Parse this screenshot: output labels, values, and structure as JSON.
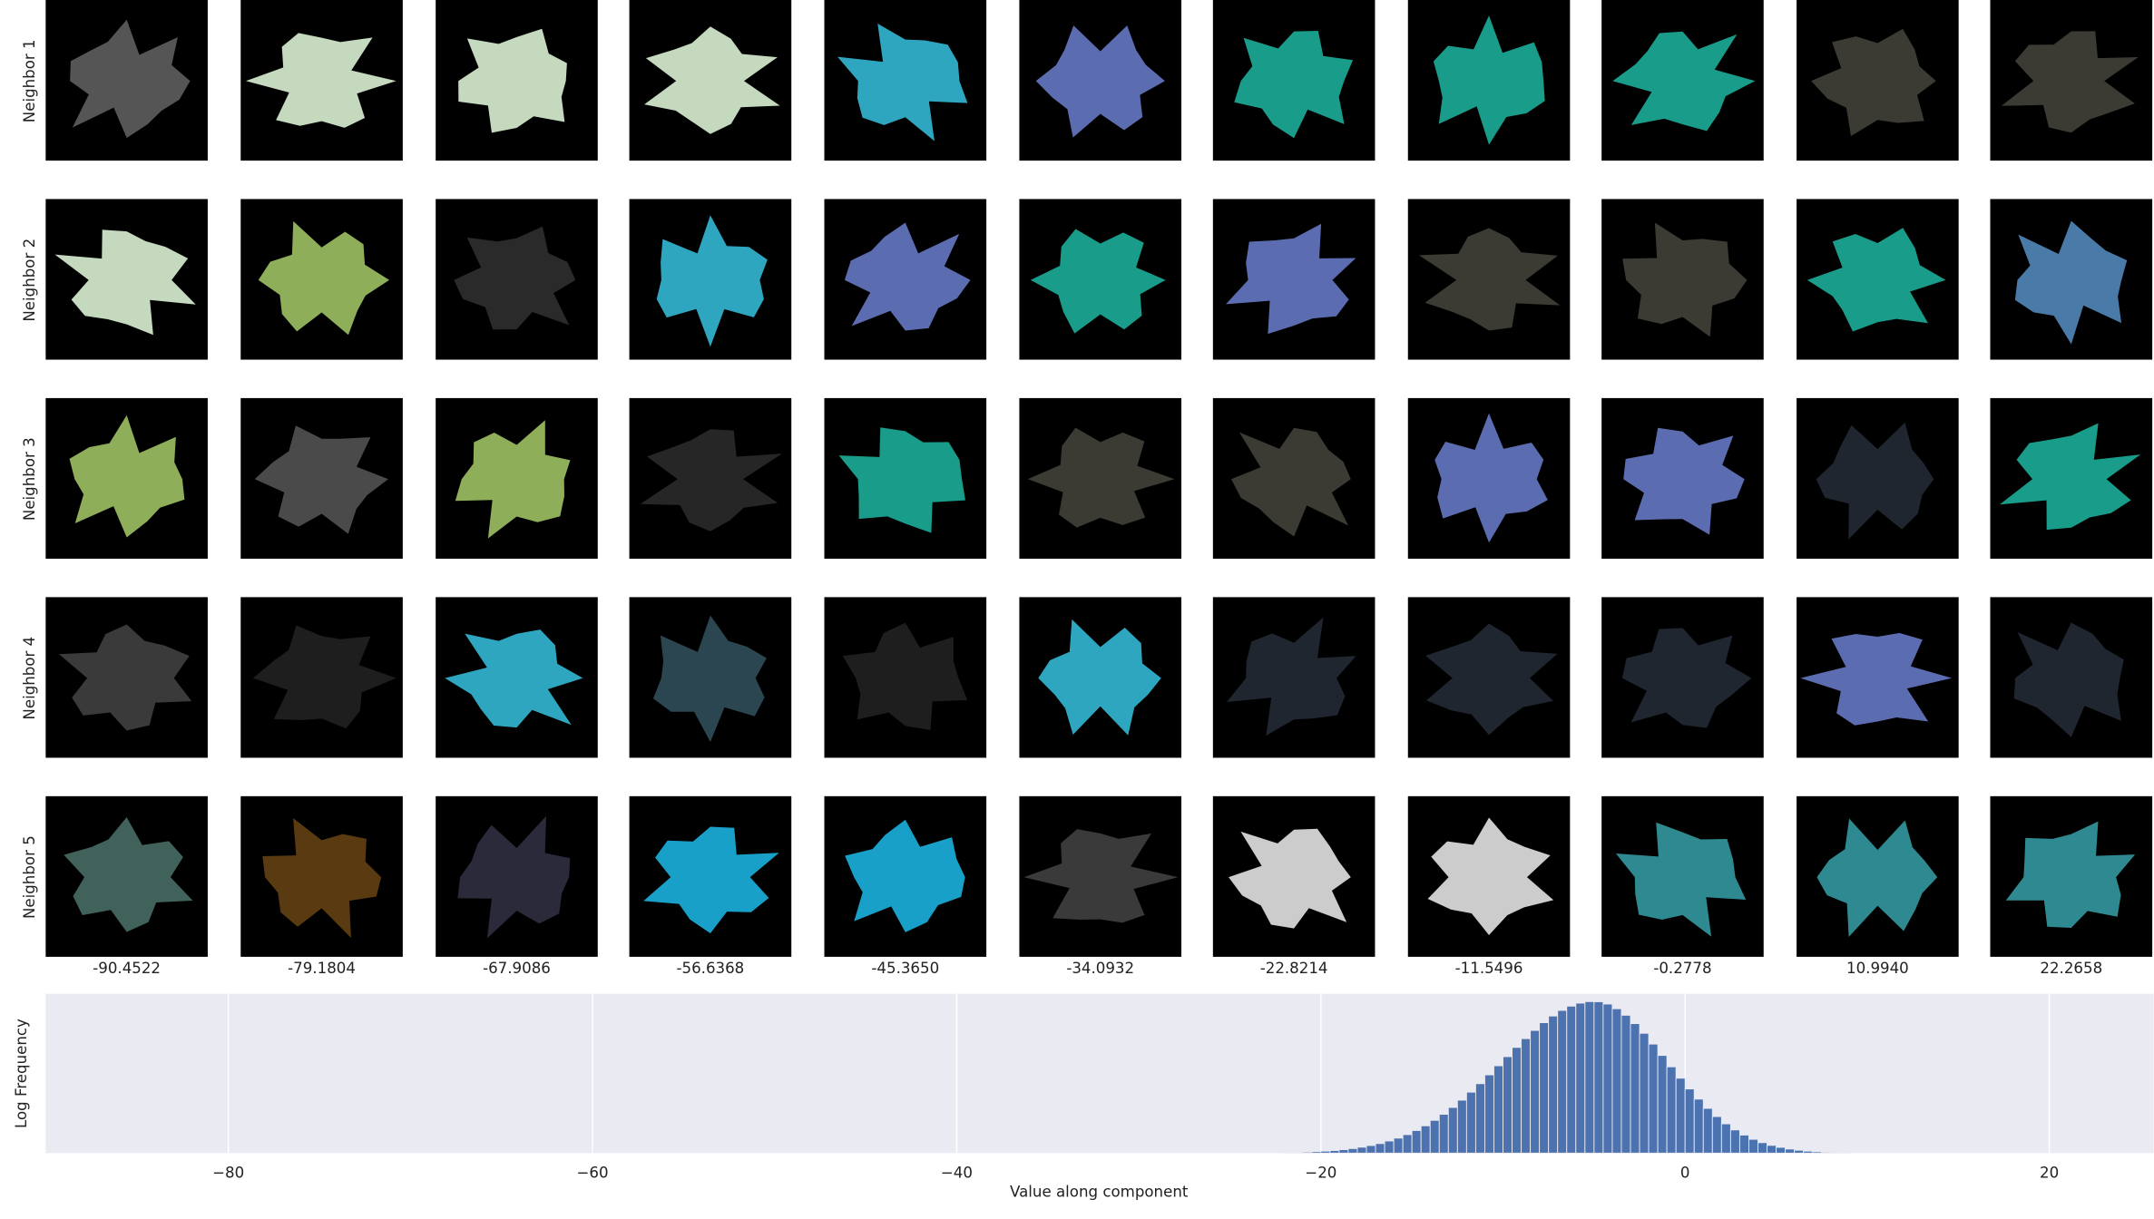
{
  "grid": {
    "row_labels": [
      "Neighbor 1",
      "Neighbor 2",
      "Neighbor 3",
      "Neighbor 4",
      "Neighbor 5"
    ],
    "column_labels": [
      "-90.4522",
      "-79.1804",
      "-67.9086",
      "-56.6368",
      "-45.3650",
      "-34.0932",
      "-22.8214",
      "-11.5496",
      "-0.2778",
      "10.9940",
      "22.2658"
    ]
  },
  "chart_data": {
    "type": "histogram",
    "ylabel": "Log Frequency",
    "xlabel": "Value along component",
    "color": "#4c72b0",
    "grid": true,
    "log_scale": true,
    "xlim": [
      -90.03,
      25.73
    ],
    "ylim": [
      0,
      10.5
    ],
    "xticks": [
      {
        "value": -80,
        "label": "−80"
      },
      {
        "value": -60,
        "label": "−60"
      },
      {
        "value": -40,
        "label": "−40"
      },
      {
        "value": -20,
        "label": "−20"
      },
      0,
      20
    ],
    "bins": [
      -22,
      -21.5,
      -21,
      -20.5,
      -20,
      -19.5,
      -19,
      -18.5,
      -18,
      -17.5,
      -17,
      -16.5,
      -16,
      -15.5,
      -15,
      -14.5,
      -14,
      -13.5,
      -13,
      -12.5,
      -12,
      -11.5,
      -11,
      -10.5,
      -10,
      -9.5,
      -9,
      -8.5,
      -8,
      -7.5,
      -7,
      -6.5,
      -6,
      -5.5,
      -5,
      -4.5,
      -4,
      -3.5,
      -3,
      -2.5,
      -2,
      -1.5,
      -1,
      -0.5,
      0,
      0.5,
      1,
      1.5,
      2,
      2.5,
      3,
      3.5,
      4,
      4.5,
      5,
      5.5,
      6,
      6.5,
      7,
      7.5,
      8,
      8.5,
      9
    ],
    "values": [
      0.04,
      0.05,
      0.07,
      0.1,
      0.13,
      0.17,
      0.23,
      0.3,
      0.39,
      0.5,
      0.63,
      0.8,
      0.99,
      1.22,
      1.49,
      1.8,
      2.16,
      2.56,
      3.01,
      3.49,
      4.02,
      4.58,
      5.16,
      5.76,
      6.36,
      6.97,
      7.55,
      8.09,
      8.6,
      9.04,
      9.41,
      9.69,
      9.89,
      9.99,
      9.98,
      9.83,
      9.52,
      9.09,
      8.54,
      7.9,
      7.19,
      6.44,
      5.69,
      4.94,
      4.23,
      3.56,
      2.95,
      2.41,
      1.93,
      1.53,
      1.19,
      0.91,
      0.69,
      0.51,
      0.38,
      0.27,
      0.19,
      0.13,
      0.09,
      0.06,
      0.04,
      0.03
    ]
  }
}
